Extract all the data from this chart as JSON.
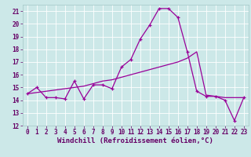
{
  "line1_x": [
    0,
    1,
    2,
    3,
    4,
    5,
    6,
    7,
    8,
    9,
    10,
    11,
    12,
    13,
    14,
    15,
    16,
    17,
    18,
    19,
    20,
    21,
    22,
    23
  ],
  "line1_y": [
    14.5,
    15.0,
    14.2,
    14.2,
    14.1,
    15.5,
    14.1,
    15.2,
    15.2,
    14.9,
    16.6,
    17.2,
    18.8,
    19.9,
    21.2,
    21.2,
    20.5,
    17.8,
    14.7,
    14.3,
    14.3,
    14.0,
    12.4,
    14.2
  ],
  "line2_x": [
    0,
    1,
    2,
    3,
    4,
    5,
    6,
    7,
    8,
    9,
    10,
    11,
    12,
    13,
    14,
    15,
    16,
    17,
    18,
    19,
    20,
    21,
    22,
    23
  ],
  "line2_y": [
    14.5,
    14.6,
    14.7,
    14.8,
    14.9,
    15.0,
    15.1,
    15.3,
    15.5,
    15.6,
    15.8,
    16.0,
    16.2,
    16.4,
    16.6,
    16.8,
    17.0,
    17.3,
    17.8,
    14.4,
    14.3,
    14.2,
    14.2,
    14.2
  ],
  "line_color": "#990099",
  "marker": "+",
  "background_color": "#cce8e8",
  "grid_color": "#aacccc",
  "xlabel": "Windchill (Refroidissement éolien,°C)",
  "ylim": [
    12,
    21.5
  ],
  "xlim": [
    -0.5,
    23.5
  ],
  "yticks": [
    12,
    13,
    14,
    15,
    16,
    17,
    18,
    19,
    20,
    21
  ],
  "xticks": [
    0,
    1,
    2,
    3,
    4,
    5,
    6,
    7,
    8,
    9,
    10,
    11,
    12,
    13,
    14,
    15,
    16,
    17,
    18,
    19,
    20,
    21,
    22,
    23
  ],
  "tick_fontsize": 5.5,
  "xlabel_fontsize": 6.5
}
